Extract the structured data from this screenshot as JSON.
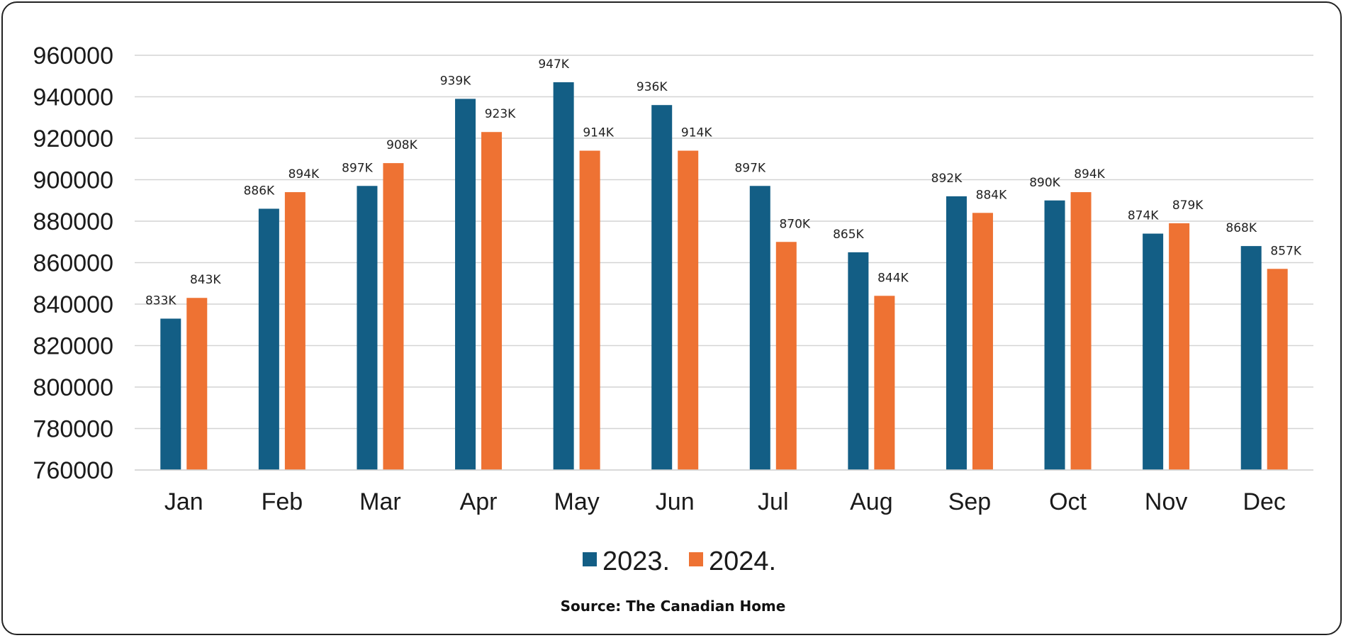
{
  "chart_data": {
    "type": "bar",
    "categories": [
      "Jan",
      "Feb",
      "Mar",
      "Apr",
      "May",
      "Jun",
      "Jul",
      "Aug",
      "Sep",
      "Oct",
      "Nov",
      "Dec"
    ],
    "series": [
      {
        "name": "2023.",
        "color": "#135e85",
        "values": [
          833000,
          886000,
          897000,
          939000,
          947000,
          936000,
          897000,
          865000,
          892000,
          890000,
          874000,
          868000
        ],
        "labels": [
          "833K",
          "886K",
          "897K",
          "939K",
          "947K",
          "936K",
          "897K",
          "865K",
          "892K",
          "890K",
          "874K",
          "868K"
        ]
      },
      {
        "name": "2024.",
        "color": "#ee7233",
        "values": [
          843000,
          894000,
          908000,
          923000,
          914000,
          914000,
          870000,
          844000,
          884000,
          894000,
          879000,
          857000
        ],
        "labels": [
          "843K",
          "894K",
          "908K",
          "923K",
          "914K",
          "914K",
          "870K",
          "844K",
          "884K",
          "894K",
          "879K",
          "857K"
        ]
      }
    ],
    "ylim": [
      760000,
      960000
    ],
    "yticks": [
      "960000",
      "940000",
      "920000",
      "900000",
      "880000",
      "860000",
      "840000",
      "820000",
      "800000",
      "780000",
      "760000"
    ],
    "grid": true,
    "legend_position": "bottom"
  },
  "source": "Source: The Canadian Home"
}
